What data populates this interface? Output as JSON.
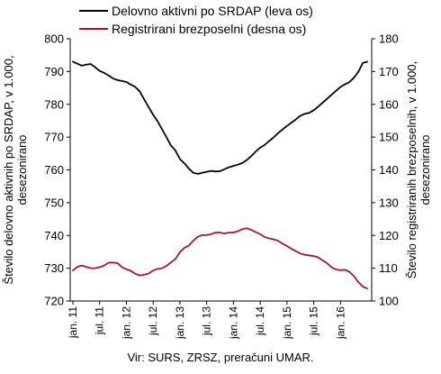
{
  "chart_data": {
    "type": "line",
    "title": "",
    "source": "Vir: SURS, ZRSZ, preračuni UMAR.",
    "legend_position": "top",
    "grid": false,
    "x_ticks": [
      "jan. 11",
      "jul. 11",
      "jan. 12",
      "jul. 12",
      "jan. 13",
      "jul. 13",
      "jan. 14",
      "jul. 14",
      "jan. 15",
      "jul. 15",
      "jan. 16"
    ],
    "x_range": [
      "2011-01",
      "2016-07"
    ],
    "left_axis": {
      "label_lines": [
        "Število delovno aktivnih po SRDAP, v 1.000,",
        "desezonirano"
      ],
      "ylim": [
        720,
        800
      ],
      "ticks": [
        720,
        730,
        740,
        750,
        760,
        770,
        780,
        790,
        800
      ]
    },
    "right_axis": {
      "label_lines": [
        "Število registriranih brezposelnih, v 1.000,",
        "desezonirano"
      ],
      "ylim": [
        100,
        180
      ],
      "ticks": [
        100,
        110,
        120,
        130,
        140,
        150,
        160,
        170,
        180
      ]
    },
    "series": [
      {
        "name": "Delovno aktivni po SRDAP (leva os)",
        "axis": "left",
        "color": "#000000",
        "x": [
          "2011-01",
          "2011-02",
          "2011-03",
          "2011-04",
          "2011-05",
          "2011-06",
          "2011-07",
          "2011-08",
          "2011-09",
          "2011-10",
          "2011-11",
          "2011-12",
          "2012-01",
          "2012-02",
          "2012-03",
          "2012-04",
          "2012-05",
          "2012-06",
          "2012-07",
          "2012-08",
          "2012-09",
          "2012-10",
          "2012-11",
          "2012-12",
          "2013-01",
          "2013-02",
          "2013-03",
          "2013-04",
          "2013-05",
          "2013-06",
          "2013-07",
          "2013-08",
          "2013-09",
          "2013-10",
          "2013-11",
          "2013-12",
          "2014-01",
          "2014-02",
          "2014-03",
          "2014-04",
          "2014-05",
          "2014-06",
          "2014-07",
          "2014-08",
          "2014-09",
          "2014-10",
          "2014-11",
          "2014-12",
          "2015-01",
          "2015-02",
          "2015-03",
          "2015-04",
          "2015-05",
          "2015-06",
          "2015-07",
          "2015-08",
          "2015-09",
          "2015-10",
          "2015-11",
          "2015-12",
          "2016-01",
          "2016-02",
          "2016-03",
          "2016-04",
          "2016-05",
          "2016-06",
          "2016-07"
        ],
        "values": [
          793.0,
          792.4,
          791.8,
          792.1,
          792.3,
          791.3,
          790.2,
          789.6,
          788.8,
          787.9,
          787.4,
          787.1,
          786.8,
          786.0,
          785.3,
          783.9,
          781.5,
          779.1,
          776.8,
          774.8,
          772.4,
          769.9,
          767.4,
          765.9,
          763.3,
          762.0,
          760.4,
          759.1,
          758.8,
          759.1,
          759.4,
          759.7,
          759.5,
          759.6,
          760.2,
          760.8,
          761.2,
          761.6,
          762.1,
          763.0,
          764.2,
          765.6,
          766.8,
          767.6,
          768.8,
          769.9,
          771.2,
          772.3,
          773.4,
          774.4,
          775.4,
          776.5,
          777.1,
          777.4,
          778.2,
          779.3,
          780.5,
          781.7,
          782.9,
          784.1,
          785.3,
          786.1,
          786.8,
          788.1,
          789.9,
          792.6,
          793.0
        ]
      },
      {
        "name": "Registrirani brezposelni (desna os)",
        "axis": "right",
        "color": "#9b1b30",
        "x": [
          "2011-01",
          "2011-02",
          "2011-03",
          "2011-04",
          "2011-05",
          "2011-06",
          "2011-07",
          "2011-08",
          "2011-09",
          "2011-10",
          "2011-11",
          "2011-12",
          "2012-01",
          "2012-02",
          "2012-03",
          "2012-04",
          "2012-05",
          "2012-06",
          "2012-07",
          "2012-08",
          "2012-09",
          "2012-10",
          "2012-11",
          "2012-12",
          "2013-01",
          "2013-02",
          "2013-03",
          "2013-04",
          "2013-05",
          "2013-06",
          "2013-07",
          "2013-08",
          "2013-09",
          "2013-10",
          "2013-11",
          "2013-12",
          "2014-01",
          "2014-02",
          "2014-03",
          "2014-04",
          "2014-05",
          "2014-06",
          "2014-07",
          "2014-08",
          "2014-09",
          "2014-10",
          "2014-11",
          "2014-12",
          "2015-01",
          "2015-02",
          "2015-03",
          "2015-04",
          "2015-05",
          "2015-06",
          "2015-07",
          "2015-08",
          "2015-09",
          "2015-10",
          "2015-11",
          "2015-12",
          "2016-01",
          "2016-02",
          "2016-03",
          "2016-04",
          "2016-05",
          "2016-06",
          "2016-07"
        ],
        "values": [
          109.3,
          110.4,
          110.8,
          110.4,
          110.0,
          110.0,
          110.3,
          110.8,
          111.7,
          111.7,
          111.6,
          110.3,
          109.7,
          109.2,
          108.3,
          107.8,
          108.0,
          108.4,
          109.3,
          109.8,
          110.0,
          110.7,
          111.8,
          112.8,
          114.9,
          116.2,
          116.9,
          118.4,
          119.6,
          120.1,
          120.1,
          120.4,
          120.9,
          120.9,
          120.6,
          120.9,
          120.9,
          121.3,
          121.9,
          122.2,
          121.7,
          121.0,
          120.4,
          119.5,
          119.1,
          118.8,
          118.4,
          117.5,
          116.8,
          115.9,
          115.2,
          114.5,
          114.1,
          113.9,
          113.7,
          113.3,
          112.4,
          111.5,
          110.3,
          109.6,
          109.4,
          109.5,
          108.9,
          107.6,
          105.8,
          104.4,
          103.8
        ]
      }
    ]
  }
}
